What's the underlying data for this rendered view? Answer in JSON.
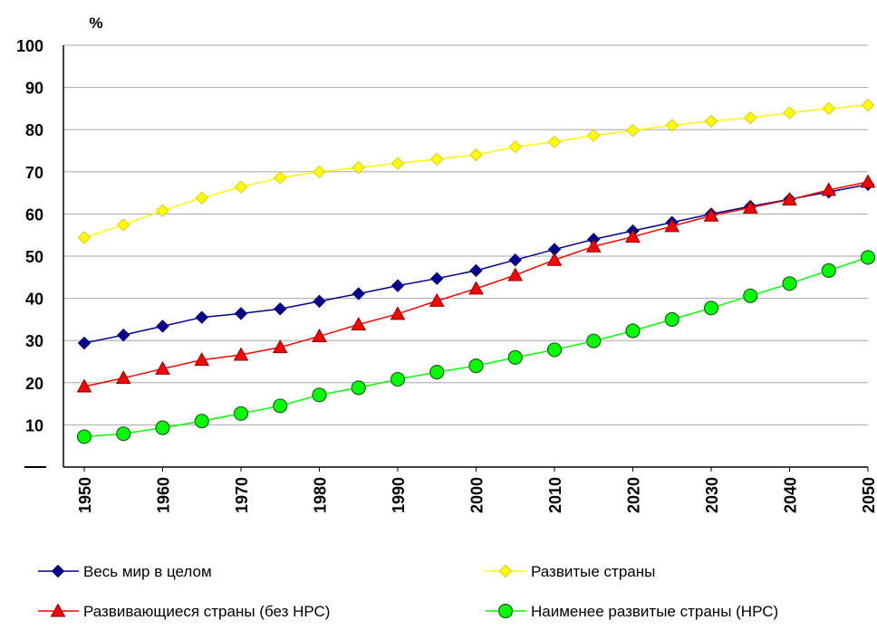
{
  "chart_data": {
    "type": "line",
    "ylabel": "%",
    "ylim": [
      0,
      100
    ],
    "y_ticks": [
      100,
      90,
      80,
      70,
      60,
      50,
      40,
      30,
      20,
      10
    ],
    "x_tick_labels": [
      "1950",
      "1960",
      "1970",
      "1980",
      "1990",
      "2000",
      "2010",
      "2020",
      "2030",
      "2040",
      "2050"
    ],
    "x": [
      1950,
      1955,
      1960,
      1965,
      1970,
      1975,
      1980,
      1985,
      1990,
      1995,
      2000,
      2005,
      2010,
      2015,
      2020,
      2025,
      2030,
      2035,
      2040,
      2045,
      2050
    ],
    "grid": true,
    "legend_position": "bottom",
    "series": [
      {
        "name": "Весь мир в целом",
        "color": "#00008b",
        "marker": "diamond",
        "values": [
          29.4,
          31.3,
          33.4,
          35.5,
          36.4,
          37.5,
          39.3,
          41.1,
          43.0,
          44.7,
          46.6,
          49.1,
          51.6,
          54.0,
          56.0,
          58.0,
          60.0,
          61.8,
          63.5,
          65.2,
          67.0
        ]
      },
      {
        "name": "Развитые страны",
        "color": "#ffff00",
        "marker": "diamond",
        "values": [
          54.4,
          57.4,
          60.8,
          63.8,
          66.4,
          68.6,
          70.0,
          71.0,
          72.0,
          73.0,
          74.0,
          75.9,
          77.1,
          78.6,
          79.8,
          81.0,
          82.0,
          82.8,
          84.0,
          85.0,
          85.8
        ]
      },
      {
        "name": "Развивающиеся страны (без НРС)",
        "color": "#ff0000",
        "marker": "triangle",
        "values": [
          19.1,
          21.1,
          23.3,
          25.4,
          26.6,
          28.4,
          31.0,
          33.8,
          36.3,
          39.4,
          42.3,
          45.5,
          49.1,
          52.3,
          54.6,
          57.1,
          59.6,
          61.5,
          63.4,
          65.7,
          67.6
        ]
      },
      {
        "name": "Наименее развитые страны (НРС)",
        "color": "#00ff00",
        "marker": "circle",
        "values": [
          7.2,
          7.9,
          9.3,
          10.9,
          12.7,
          14.5,
          17.1,
          18.8,
          20.8,
          22.5,
          24.0,
          26.0,
          27.8,
          29.9,
          32.3,
          35.0,
          37.7,
          40.6,
          43.5,
          46.6,
          49.7
        ]
      }
    ]
  }
}
